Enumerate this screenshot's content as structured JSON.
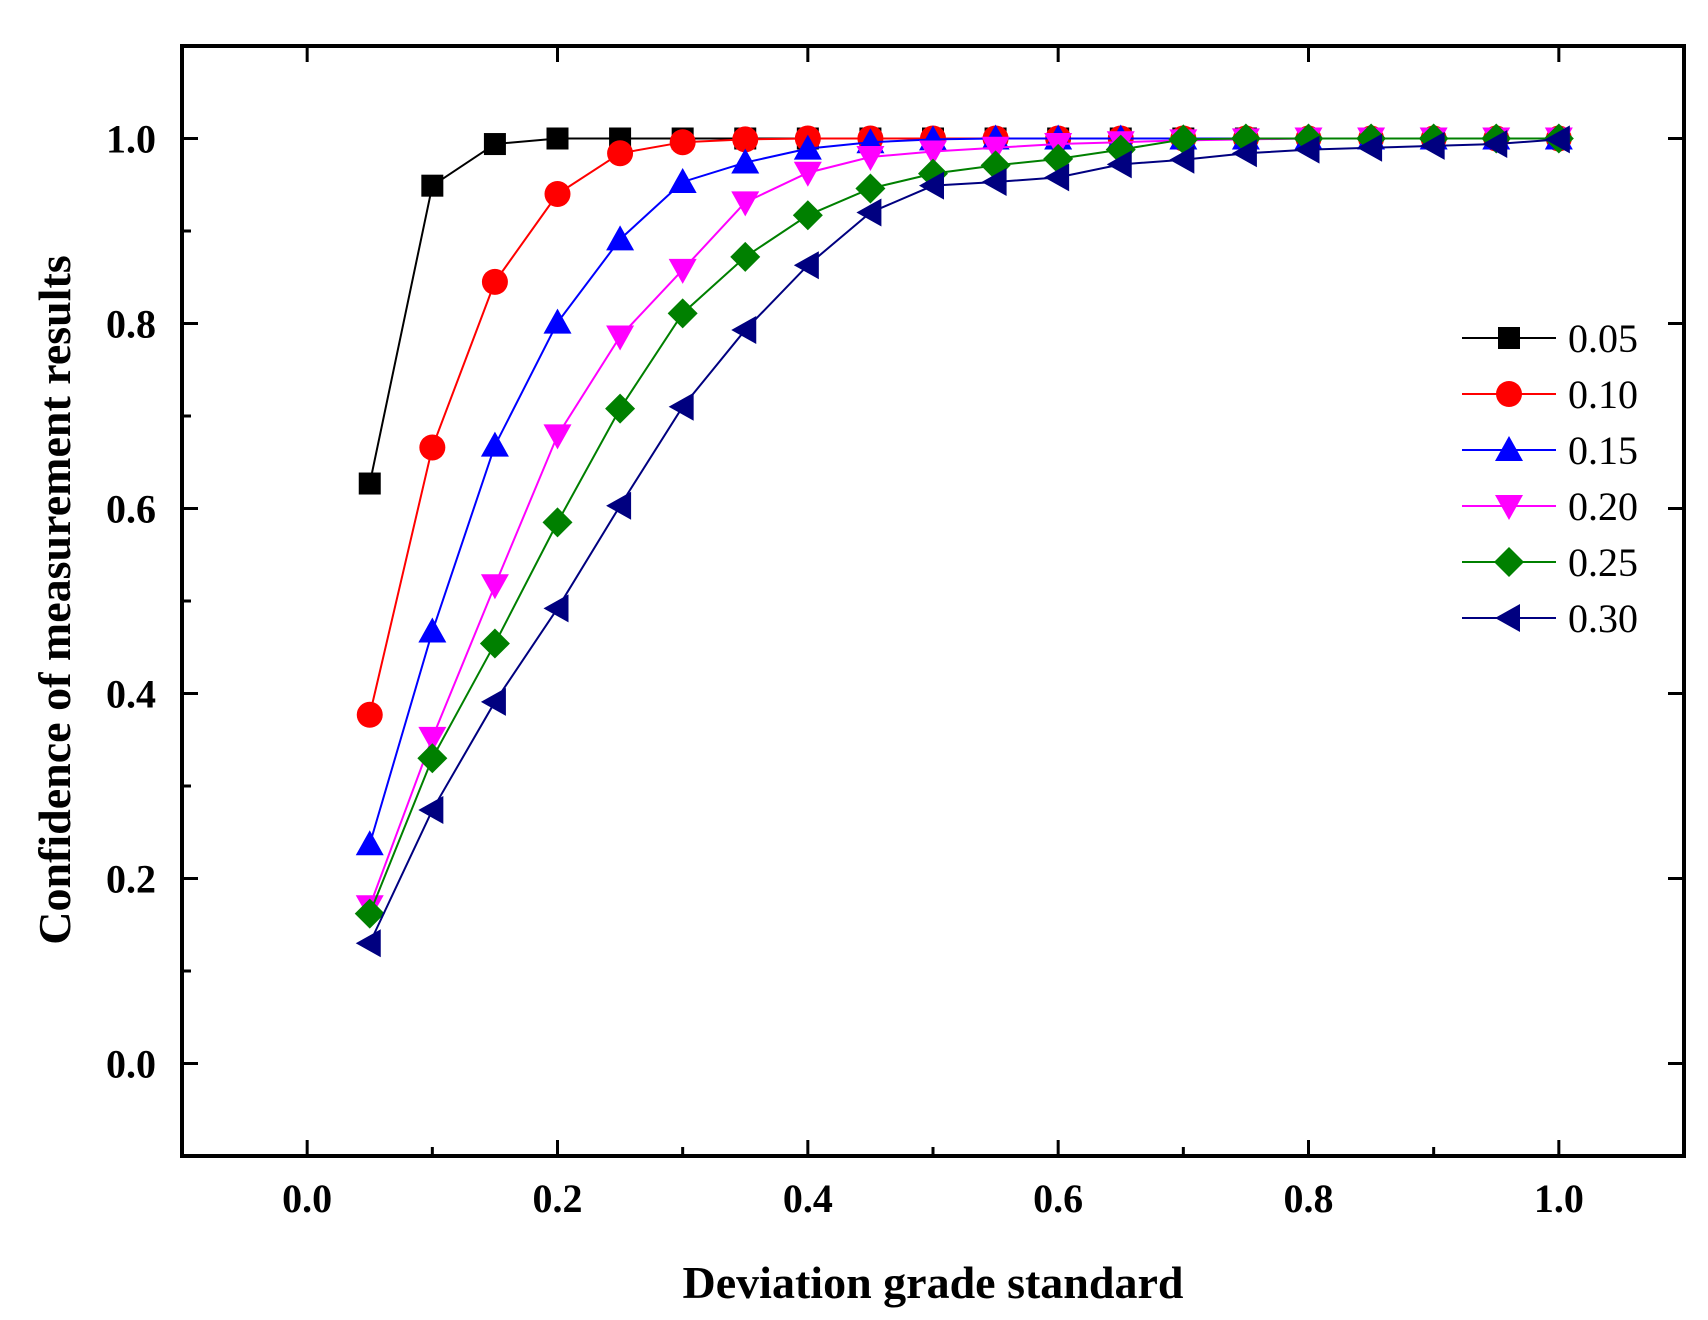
{
  "chart_data": {
    "type": "line",
    "title": "",
    "xlabel": "Deviation grade standard",
    "ylabel": "Confidence of measurement results",
    "xlim": [
      -0.1,
      1.1
    ],
    "ylim": [
      -0.1,
      1.1
    ],
    "x_ticks": [
      0.0,
      0.2,
      0.4,
      0.6,
      0.8,
      1.0
    ],
    "x_tick_labels": [
      "0.0",
      "0.2",
      "0.4",
      "0.6",
      "0.8",
      "1.0"
    ],
    "y_ticks": [
      0.0,
      0.2,
      0.4,
      0.6,
      0.8,
      1.0
    ],
    "y_tick_labels": [
      "0.0",
      "0.2",
      "0.4",
      "0.6",
      "0.8",
      "1.0"
    ],
    "grid": false,
    "legend_position": "right",
    "x": [
      0.05,
      0.1,
      0.15,
      0.2,
      0.25,
      0.3,
      0.35,
      0.4,
      0.45,
      0.5,
      0.55,
      0.6,
      0.65,
      0.7,
      0.75,
      0.8,
      0.85,
      0.9,
      0.95,
      1.0
    ],
    "series": [
      {
        "name": "0.05",
        "color": "#000000",
        "marker": "square",
        "values": [
          0.627,
          0.949,
          0.994,
          1.0,
          1.0,
          1.0,
          1.0,
          1.0,
          1.0,
          1.0,
          1.0,
          1.0,
          1.0,
          1.0,
          1.0,
          1.0,
          1.0,
          1.0,
          1.0,
          1.0
        ]
      },
      {
        "name": "0.10",
        "color": "#ff0000",
        "marker": "circle",
        "values": [
          0.377,
          0.666,
          0.845,
          0.94,
          0.984,
          0.996,
          0.999,
          1.0,
          1.0,
          1.0,
          1.0,
          1.0,
          1.0,
          1.0,
          1.0,
          1.0,
          1.0,
          1.0,
          1.0,
          1.0
        ]
      },
      {
        "name": "0.15",
        "color": "#0000ff",
        "marker": "triangle-up",
        "values": [
          0.237,
          0.467,
          0.668,
          0.801,
          0.891,
          0.953,
          0.974,
          0.989,
          0.996,
          0.999,
          1.0,
          1.0,
          1.0,
          1.0,
          1.0,
          1.0,
          1.0,
          1.0,
          1.0,
          1.0
        ]
      },
      {
        "name": "0.20",
        "color": "#ff00ff",
        "marker": "triangle-down",
        "values": [
          0.17,
          0.352,
          0.517,
          0.679,
          0.786,
          0.858,
          0.931,
          0.963,
          0.98,
          0.986,
          0.99,
          0.994,
          0.996,
          0.998,
          0.999,
          1.0,
          1.0,
          1.0,
          1.0,
          1.0
        ]
      },
      {
        "name": "0.25",
        "color": "#008000",
        "marker": "diamond",
        "values": [
          0.162,
          0.33,
          0.454,
          0.585,
          0.708,
          0.811,
          0.872,
          0.917,
          0.946,
          0.962,
          0.971,
          0.978,
          0.988,
          0.999,
          1.0,
          1.0,
          1.0,
          1.0,
          1.0,
          1.0
        ]
      },
      {
        "name": "0.30",
        "color": "#000080",
        "marker": "triangle-left",
        "values": [
          0.13,
          0.274,
          0.391,
          0.492,
          0.603,
          0.71,
          0.793,
          0.863,
          0.92,
          0.949,
          0.953,
          0.958,
          0.972,
          0.977,
          0.984,
          0.988,
          0.99,
          0.992,
          0.994,
          0.999
        ]
      }
    ]
  }
}
